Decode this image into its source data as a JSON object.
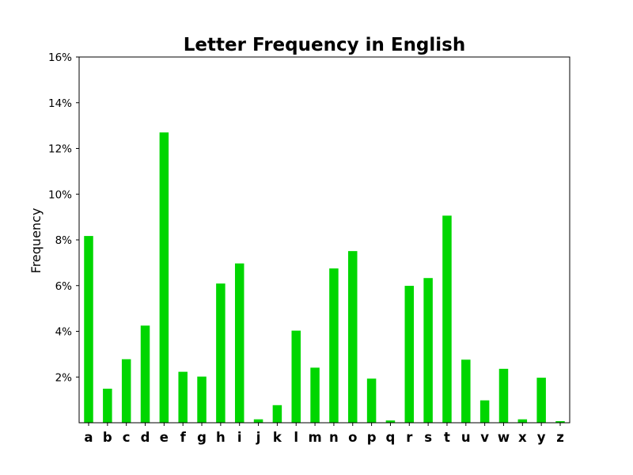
{
  "chart_data": {
    "type": "bar",
    "title": "Letter Frequency in English",
    "xlabel": "",
    "ylabel": "Frequency",
    "categories": [
      "a",
      "b",
      "c",
      "d",
      "e",
      "f",
      "g",
      "h",
      "i",
      "j",
      "k",
      "l",
      "m",
      "n",
      "o",
      "p",
      "q",
      "r",
      "s",
      "t",
      "u",
      "v",
      "w",
      "x",
      "y",
      "z"
    ],
    "values": [
      8.17,
      1.49,
      2.78,
      4.25,
      12.7,
      2.23,
      2.02,
      6.09,
      6.97,
      0.15,
      0.77,
      4.03,
      2.41,
      6.75,
      7.51,
      1.93,
      0.1,
      5.99,
      6.33,
      9.06,
      2.76,
      0.98,
      2.36,
      0.15,
      1.97,
      0.07
    ],
    "ylim": [
      0,
      16
    ],
    "yticks": [
      2,
      4,
      6,
      8,
      10,
      12,
      14,
      16
    ],
    "ytick_labels": [
      "2%",
      "4%",
      "6%",
      "8%",
      "10%",
      "12%",
      "14%",
      "16%"
    ],
    "bar_color": "#00d600",
    "grid": false,
    "legend": "none"
  }
}
